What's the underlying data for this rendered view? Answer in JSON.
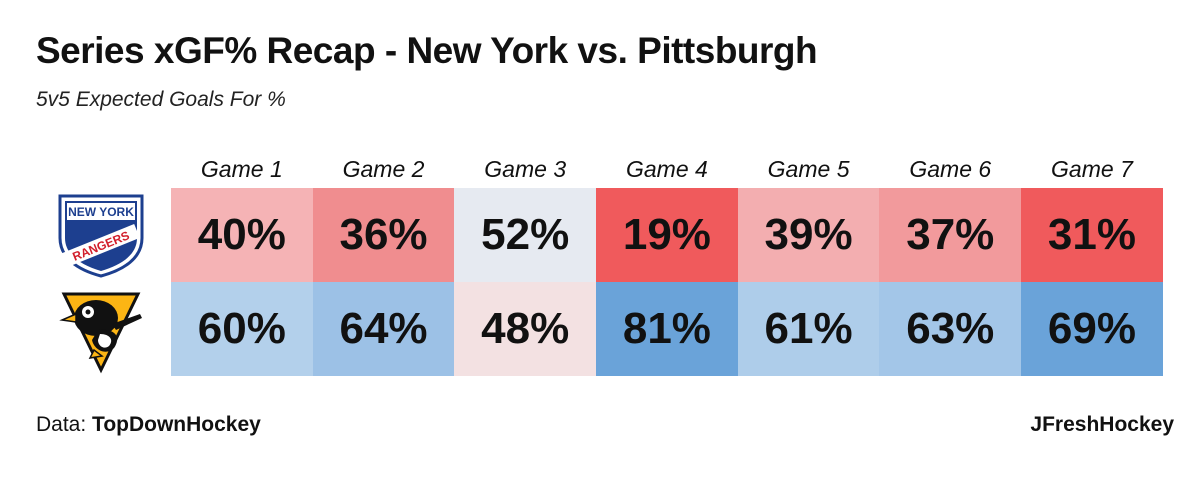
{
  "header": {
    "title": "Series xGF% Recap - New York vs. Pittsburgh",
    "subtitle": "5v5 Expected Goals For %"
  },
  "logos": {
    "rangers_line1": "NEW YORK",
    "rangers_line2": "RANGERS"
  },
  "footer": {
    "data_prefix": "Data:",
    "data_source": "TopDownHockey",
    "credit": "JFreshHockey"
  },
  "colors": {
    "red_strong": "#f05a5c",
    "red_light": "#f5b3b5",
    "blue_strong": "#6aa3d9",
    "blue_light": "#a9cbe9",
    "neutral": "#e6eaf1",
    "neutral_pink": "#f3e1e2"
  },
  "chart_data": {
    "type": "heatmap",
    "categories": [
      "Game 1",
      "Game 2",
      "Game 3",
      "Game 4",
      "Game 5",
      "Game 6",
      "Game 7"
    ],
    "series": [
      {
        "values": [
          40,
          36,
          52,
          19,
          39,
          37,
          31
        ],
        "labels": [
          "40%",
          "36%",
          "52%",
          "19%",
          "39%",
          "37%",
          "31%"
        ],
        "colors": [
          "#f5b3b5",
          "#f08d8f",
          "#e6eaf1",
          "#f05a5c",
          "#f3aeb0",
          "#f29a9c",
          "#f05a5c"
        ]
      },
      {
        "values": [
          60,
          64,
          48,
          81,
          61,
          63,
          69
        ],
        "labels": [
          "60%",
          "64%",
          "48%",
          "81%",
          "61%",
          "63%",
          "69%"
        ],
        "colors": [
          "#b3d0eb",
          "#9cc1e6",
          "#f3e1e2",
          "#6aa3d9",
          "#aecdea",
          "#a3c6e8",
          "#6aa3d9"
        ]
      }
    ]
  }
}
